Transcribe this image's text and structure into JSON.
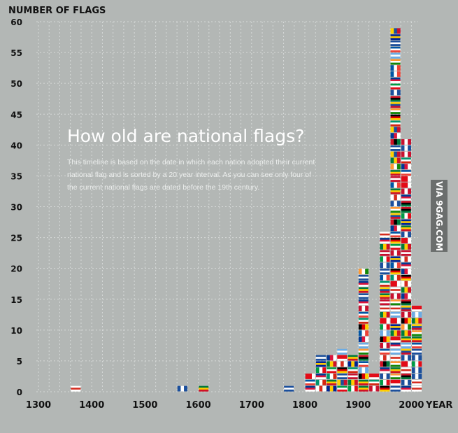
{
  "chart_data": {
    "type": "bar",
    "title": "How old are national flags?",
    "subtitle": "This timeline is based on the date in which each nation adopted their current national flag and is sorted by a 20 year interval. As you can see only four of the current national flags are dated before the 19th century.",
    "ylabel": "NUMBER OF FLAGS",
    "xlabel": "YEAR",
    "ylim": [
      0,
      60
    ],
    "yticks": [
      0,
      5,
      10,
      15,
      20,
      25,
      30,
      35,
      40,
      45,
      50,
      55,
      60
    ],
    "xlim": [
      1300,
      2010
    ],
    "xticks": [
      1300,
      1400,
      1500,
      1600,
      1700,
      1800,
      1900,
      2000
    ],
    "grid": true,
    "bars": [
      {
        "year": 1370,
        "value": 1
      },
      {
        "year": 1570,
        "value": 1
      },
      {
        "year": 1610,
        "value": 1
      },
      {
        "year": 1770,
        "value": 1
      },
      {
        "year": 1810,
        "value": 3
      },
      {
        "year": 1830,
        "value": 6
      },
      {
        "year": 1850,
        "value": 6
      },
      {
        "year": 1870,
        "value": 7
      },
      {
        "year": 1890,
        "value": 6
      },
      {
        "year": 1910,
        "value": 20
      },
      {
        "year": 1930,
        "value": 3
      },
      {
        "year": 1950,
        "value": 26
      },
      {
        "year": 1970,
        "value": 59
      },
      {
        "year": 1990,
        "value": 41
      },
      {
        "year": 2010,
        "value": 14
      }
    ]
  },
  "watermark": "VIA 9GAG.COM"
}
